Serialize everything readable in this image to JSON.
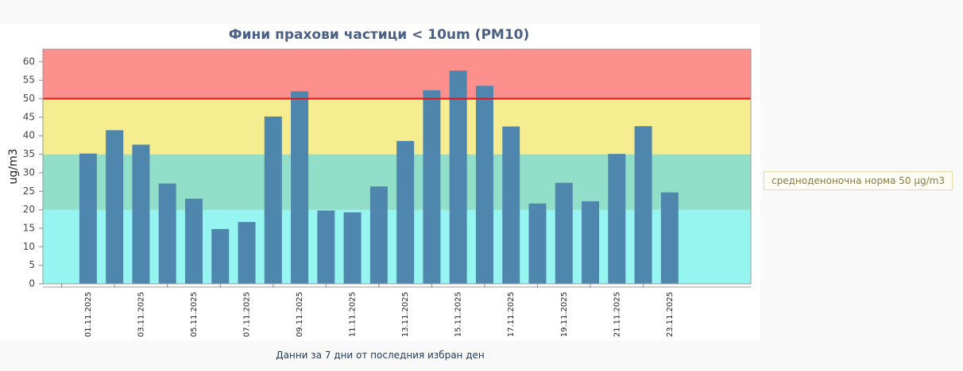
{
  "chart_data": {
    "type": "bar",
    "title": "Фини прахови частици < 10um (PM10)",
    "y_label": "ug/m3",
    "categories": [
      "01.11.2025",
      null,
      "03.11.2025",
      null,
      "05.11.2025",
      null,
      "07.11.2025",
      null,
      "09.11.2025",
      null,
      "11.11.2025",
      null,
      "13.11.2025",
      null,
      "15.11.2025",
      null,
      "17.11.2025",
      null,
      "19.11.2025",
      null,
      "21.11.2025",
      null,
      "23.11.2025"
    ],
    "values": [
      35.2,
      41.5,
      37.6,
      27.1,
      23.0,
      14.8,
      16.7,
      45.2,
      52.0,
      19.8,
      19.3,
      26.3,
      38.6,
      52.3,
      57.6,
      53.5,
      42.5,
      21.7,
      27.3,
      22.3,
      35.1,
      42.6,
      24.7
    ],
    "color": "#4f86ae",
    "ylim": [
      0,
      63.4
    ],
    "yticks": [
      0,
      5,
      10,
      15,
      20,
      25,
      30,
      35,
      40,
      45,
      50,
      55,
      60
    ],
    "bands": [
      {
        "from": 0,
        "to": 20,
        "color": "#96f5f0"
      },
      {
        "from": 20,
        "to": 35,
        "color": "#91dfc8"
      },
      {
        "from": 35,
        "to": 50,
        "color": "#f5ed8f"
      },
      {
        "from": 50,
        "to": 63.4,
        "color": "#fd8f8c"
      }
    ],
    "threshold": {
      "value": 50,
      "color": "#e0151a"
    },
    "grid": false
  },
  "legend_note": "средноденоночна норма 50 µg/m3",
  "footer_note": "Данни за 7 дни от последния избран ден"
}
